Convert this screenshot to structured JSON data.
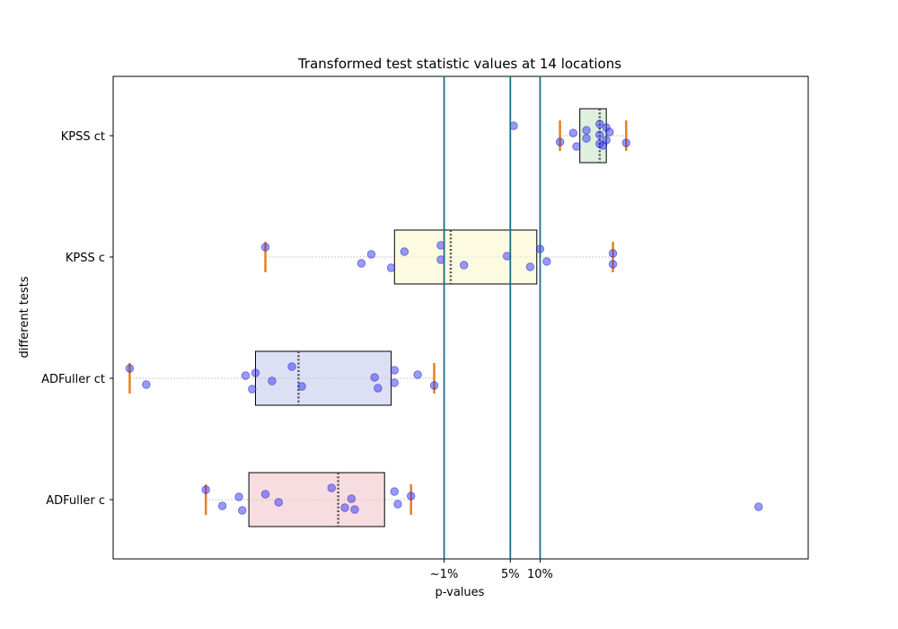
{
  "chart_data": {
    "type": "boxplot",
    "title": "Transformed test statistic values at 14 locations",
    "xlabel": "p-values",
    "ylabel": "different tests",
    "xlim": [
      -1.0,
      1.1
    ],
    "x_ticks": [
      {
        "value": 0.0,
        "label": "~1%"
      },
      {
        "value": 0.2,
        "label": "5%"
      },
      {
        "value": 0.29,
        "label": "10%"
      }
    ],
    "reference_lines": [
      0.0,
      0.2,
      0.29
    ],
    "categories": [
      "ADFuller c",
      "ADFuller ct",
      "KPSS c",
      "KPSS ct"
    ],
    "series": [
      {
        "category": "ADFuller c",
        "color": "#f4c6cc",
        "q1": -0.59,
        "median": -0.32,
        "q3": -0.18,
        "whisker_low": -0.72,
        "whisker_high": -0.1,
        "points": [
          -0.72,
          -0.67,
          -0.62,
          -0.61,
          -0.54,
          -0.5,
          -0.34,
          -0.3,
          -0.28,
          -0.27,
          -0.15,
          -0.14,
          -0.1,
          0.95
        ]
      },
      {
        "category": "ADFuller ct",
        "color": "#c6cbec",
        "q1": -0.57,
        "median": -0.44,
        "q3": -0.16,
        "whisker_low": -0.95,
        "whisker_high": -0.03,
        "points": [
          -0.95,
          -0.9,
          -0.6,
          -0.58,
          -0.57,
          -0.52,
          -0.46,
          -0.43,
          -0.21,
          -0.2,
          -0.15,
          -0.15,
          -0.08,
          -0.03
        ]
      },
      {
        "category": "KPSS c",
        "color": "#fcf6cf",
        "q1": -0.15,
        "median": 0.02,
        "q3": 0.28,
        "whisker_low": -0.54,
        "whisker_high": 0.51,
        "points": [
          -0.54,
          -0.25,
          -0.22,
          -0.16,
          -0.12,
          -0.01,
          -0.01,
          0.06,
          0.19,
          0.26,
          0.29,
          0.31,
          0.51,
          0.51
        ]
      },
      {
        "category": "KPSS ct",
        "color": "#c9e6c9",
        "q1": 0.41,
        "median": 0.47,
        "q3": 0.49,
        "whisker_low": 0.35,
        "whisker_high": 0.55,
        "points": [
          0.21,
          0.35,
          0.39,
          0.4,
          0.43,
          0.43,
          0.47,
          0.47,
          0.47,
          0.48,
          0.49,
          0.49,
          0.5,
          0.55
        ]
      }
    ]
  }
}
